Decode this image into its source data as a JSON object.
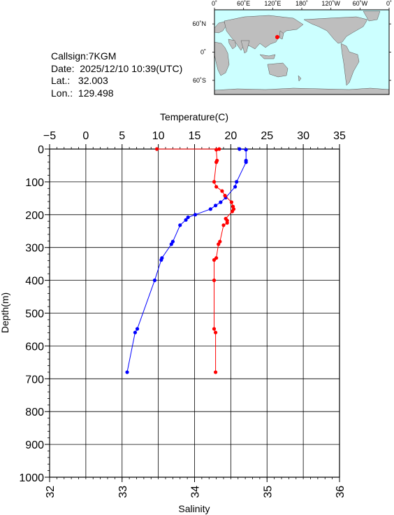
{
  "info": {
    "callsign": "Callsign:7KGM",
    "date": "Date:  2025/12/10 10:39(UTC)",
    "lat": "Lat.:   32.003",
    "lon": "Lon.:  129.498"
  },
  "map": {
    "lon_labels": [
      "0˚",
      "60˚E",
      "120˚E",
      "180˚",
      "120˚W",
      "60˚W",
      "0˚"
    ],
    "lat_labels": [
      "60˚N",
      "0˚",
      "60˚S"
    ],
    "station": {
      "lat": 32.003,
      "lon": 129.498
    },
    "colors": {
      "ocean": "#ccffff",
      "land": "#bebebe",
      "marker": "#ff0000"
    }
  },
  "chart_data": {
    "type": "line",
    "y_label": "Depth(m)",
    "y_range": [
      0,
      1000
    ],
    "y_inverted": true,
    "y_ticks": [
      0,
      100,
      200,
      300,
      400,
      500,
      600,
      700,
      800,
      900,
      1000
    ],
    "top_axis": {
      "label": "Temperature(C)",
      "range": [
        -5,
        35
      ],
      "ticks": [
        "−5",
        "0",
        "5",
        "10",
        "15",
        "20",
        "25",
        "30",
        "35"
      ]
    },
    "bottom_axis": {
      "label": "Salinity",
      "range": [
        32,
        36
      ],
      "ticks": [
        "32",
        "33",
        "34",
        "35",
        "36"
      ]
    },
    "grid": true,
    "series": [
      {
        "axis": "temperature",
        "color": "#0000ff",
        "points": [
          {
            "x": 21.2,
            "y": 0
          },
          {
            "x": 22.1,
            "y": 2
          },
          {
            "x": 22.1,
            "y": 35
          },
          {
            "x": 22.1,
            "y": 40
          },
          {
            "x": 20.8,
            "y": 100
          },
          {
            "x": 20.6,
            "y": 115
          },
          {
            "x": 19.3,
            "y": 148
          },
          {
            "x": 18.6,
            "y": 162
          },
          {
            "x": 17.9,
            "y": 172
          },
          {
            "x": 17.2,
            "y": 183
          },
          {
            "x": 15.1,
            "y": 200
          },
          {
            "x": 14.1,
            "y": 208
          },
          {
            "x": 13.8,
            "y": 216
          },
          {
            "x": 13.0,
            "y": 232
          },
          {
            "x": 12.0,
            "y": 282
          },
          {
            "x": 11.8,
            "y": 290
          },
          {
            "x": 10.5,
            "y": 332
          },
          {
            "x": 10.4,
            "y": 338
          },
          {
            "x": 9.5,
            "y": 400
          },
          {
            "x": 7.1,
            "y": 548
          },
          {
            "x": 6.8,
            "y": 559
          },
          {
            "x": 5.7,
            "y": 680
          }
        ]
      },
      {
        "axis": "salinity",
        "color": "#ff0000",
        "points": [
          {
            "x": 33.48,
            "y": 0
          },
          {
            "x": 34.34,
            "y": 0
          },
          {
            "x": 34.3,
            "y": 2
          },
          {
            "x": 34.31,
            "y": 35
          },
          {
            "x": 34.3,
            "y": 40
          },
          {
            "x": 34.27,
            "y": 100
          },
          {
            "x": 34.3,
            "y": 115
          },
          {
            "x": 34.38,
            "y": 128
          },
          {
            "x": 34.42,
            "y": 142
          },
          {
            "x": 34.51,
            "y": 162
          },
          {
            "x": 34.53,
            "y": 175
          },
          {
            "x": 34.54,
            "y": 183
          },
          {
            "x": 34.52,
            "y": 190
          },
          {
            "x": 34.43,
            "y": 212
          },
          {
            "x": 34.45,
            "y": 218
          },
          {
            "x": 34.45,
            "y": 225
          },
          {
            "x": 34.4,
            "y": 232
          },
          {
            "x": 34.35,
            "y": 282
          },
          {
            "x": 34.33,
            "y": 290
          },
          {
            "x": 34.3,
            "y": 332
          },
          {
            "x": 34.27,
            "y": 338
          },
          {
            "x": 34.27,
            "y": 400
          },
          {
            "x": 34.27,
            "y": 548
          },
          {
            "x": 34.29,
            "y": 559
          },
          {
            "x": 34.29,
            "y": 680
          }
        ]
      }
    ]
  }
}
